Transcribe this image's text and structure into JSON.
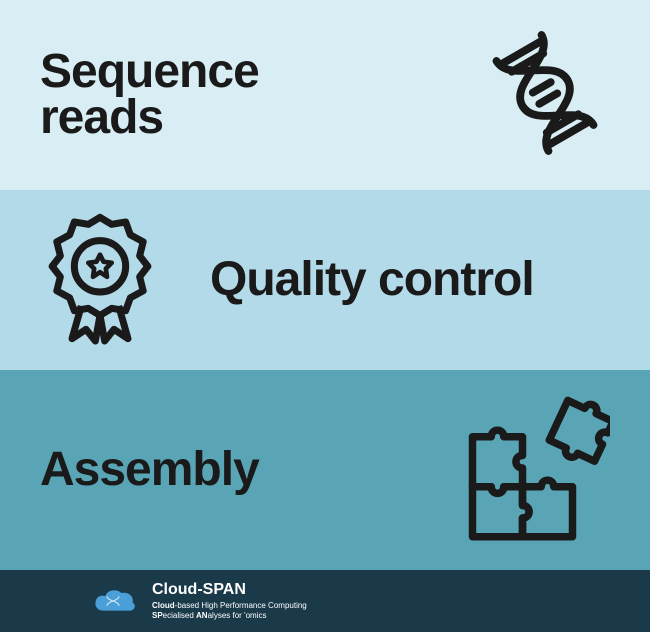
{
  "panels": [
    {
      "label": "Sequence\nreads",
      "bg": "#d9eef4",
      "icon": "dna"
    },
    {
      "label": "Quality control",
      "bg": "#b2dae8",
      "icon": "badge"
    },
    {
      "label": "Assembly",
      "bg": "#5aa5b5",
      "icon": "puzzle"
    }
  ],
  "footer": {
    "bg": "#1a3a4a",
    "brand": "Cloud-SPAN",
    "sub1": "Cloud-based High Performance Computing",
    "sub2": "SPecialised ANalyses for 'omics",
    "cloud_color": "#4a9fd8"
  },
  "style": {
    "title_fontsize": 48,
    "title_color": "#1a1a1a",
    "icon_stroke": "#1a1a1a",
    "icon_stroke_width": 7,
    "arrow_size": 28
  }
}
